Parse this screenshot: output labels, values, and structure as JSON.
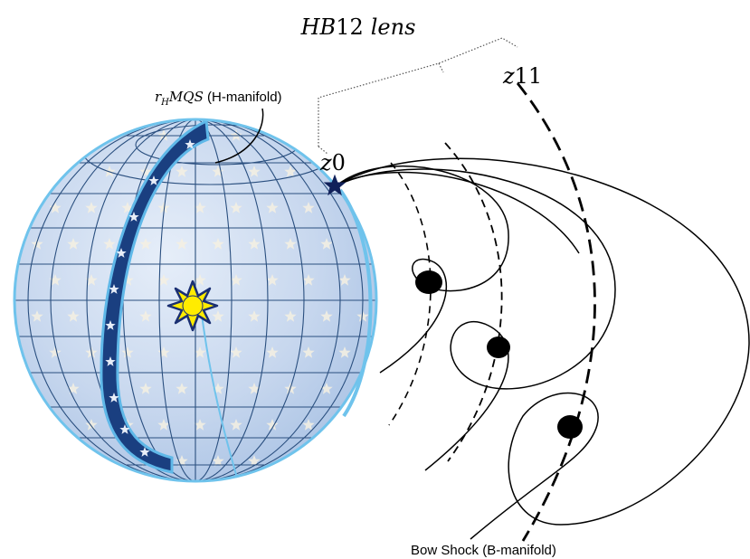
{
  "title": {
    "var": "HB",
    "num": "12",
    "word": "lens"
  },
  "sphere_label": {
    "var": "r",
    "sub": "H",
    "rest": "MQS",
    "suffix": " (H-manifold)"
  },
  "z0_label": {
    "var": "z",
    "num": "0"
  },
  "z11_label": {
    "var": "z",
    "num": "11"
  },
  "bow_shock_label": "Bow Shock (B-manifold)",
  "colors": {
    "sphere_fill": "#c9d9ef",
    "sphere_edge": "#6fc3ec",
    "grid": "#2a4f7f",
    "band": "#1a3f80",
    "band_edge": "#5fb8e8",
    "sun": "#ffec00",
    "sun_rays": "#1a2f72",
    "star_marker": "#10205a",
    "ink": "#000000"
  },
  "icons": {
    "sun": "sun-icon",
    "star": "star-marker-icon"
  }
}
